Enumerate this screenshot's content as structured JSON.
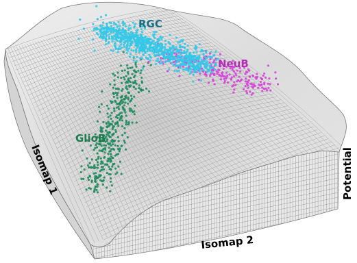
{
  "chart_data": {
    "type": "scatter",
    "subtype": "3d-surface-landscape",
    "xlabel": "Isomap 1",
    "ylabel": "Isomap 2",
    "zlabel": "Potential",
    "grid": true,
    "legend": "none",
    "colors": {
      "surface": "#d9d9d9",
      "surface_side": "#cfcfcf",
      "mesh_line": "#8a8a8a",
      "RGC": "#33c8e8",
      "NeuB": "#d545d8",
      "GlioB": "#1f8a5e"
    },
    "series": [
      {
        "name": "RGC",
        "label_color": "#1a6f86",
        "approx_points": 900
      },
      {
        "name": "NeuB",
        "label_color": "#b22fb5",
        "approx_points": 260
      },
      {
        "name": "GlioB",
        "label_color": "#1d7a4c",
        "approx_points": 420
      }
    ]
  }
}
